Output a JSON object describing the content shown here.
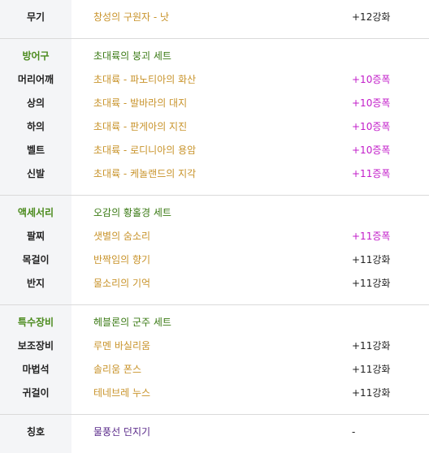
{
  "weapon": {
    "label": "무기",
    "item": "창성의 구원자 - 낫",
    "enh": "+12강화"
  },
  "armor": {
    "header_label": "방어구",
    "set_name": "초대륙의 붕괴 세트",
    "rows": [
      {
        "label": "머리어깨",
        "item": "초대륙 - 파노티아의 화산",
        "enh": "+10증폭"
      },
      {
        "label": "상의",
        "item": "초대륙 - 발바라의 대지",
        "enh": "+10증폭"
      },
      {
        "label": "하의",
        "item": "초대륙 - 판게아의 지진",
        "enh": "+10증폭"
      },
      {
        "label": "벨트",
        "item": "초대륙 - 로디니아의 용암",
        "enh": "+10증폭"
      },
      {
        "label": "신발",
        "item": "초대륙 - 케놀랜드의 지각",
        "enh": "+11증폭"
      }
    ]
  },
  "accessory": {
    "header_label": "액세서리",
    "set_name": "오감의 황홀경 세트",
    "rows": [
      {
        "label": "팔찌",
        "item": "샛별의 숨소리",
        "enh": "+11증폭"
      },
      {
        "label": "목걸이",
        "item": "반짝임의 향기",
        "enh": "+11강화"
      },
      {
        "label": "반지",
        "item": "물소리의 기억",
        "enh": "+11강화"
      }
    ]
  },
  "special": {
    "header_label": "특수장비",
    "set_name": "헤블론의 군주 세트",
    "rows": [
      {
        "label": "보조장비",
        "item": "루멘 바실리움",
        "enh": "+11강화"
      },
      {
        "label": "마법석",
        "item": "솔리움 폰스",
        "enh": "+11강화"
      },
      {
        "label": "귀걸이",
        "item": "테네브레 누스",
        "enh": "+11강화"
      }
    ]
  },
  "title_row": {
    "label": "칭호",
    "item": "물풍선 던지기",
    "enh": "-"
  },
  "colors": {
    "label_bg": "#f4f5f7",
    "group_label": "#4a8a1c",
    "item_text": "#c8932a",
    "set_text": "#3a7a14",
    "amplify_text": "#c21cc9",
    "title_item": "#5a2a8a",
    "divider": "#dadada"
  }
}
